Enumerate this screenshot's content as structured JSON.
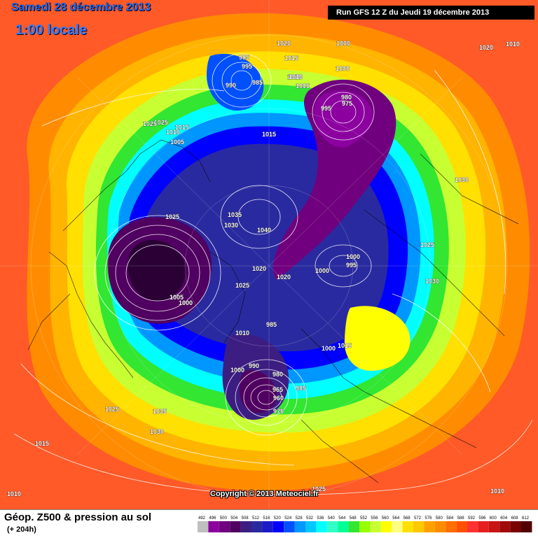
{
  "header": {
    "date_title": "Samedi 28 décembre 2013",
    "time_title": "1:00 locale",
    "run_info": "Run GFS 12 Z du Jeudi 19 décembre 2013"
  },
  "footer": {
    "title": "Géop. Z500 & pression au sol",
    "subtitle": "(+ 204h)",
    "copyright": "Copyright © 2013 Meteociel.fr"
  },
  "legend": {
    "values": [
      "492",
      "496",
      "500",
      "504",
      "508",
      "512",
      "516",
      "520",
      "524",
      "528",
      "532",
      "536",
      "540",
      "544",
      "548",
      "552",
      "556",
      "560",
      "564",
      "568",
      "572",
      "576",
      "580",
      "584",
      "588",
      "592",
      "596",
      "600",
      "604",
      "608",
      "612"
    ],
    "colors": [
      "#bfbfbf",
      "#8c00a0",
      "#70007d",
      "#500060",
      "#3c1e82",
      "#2a2aa0",
      "#1a1ac8",
      "#0000ff",
      "#0050ff",
      "#0096ff",
      "#00c8ff",
      "#00ffff",
      "#32ffc8",
      "#00ff96",
      "#32e632",
      "#96ff00",
      "#c8ff32",
      "#ffff00",
      "#ffff80",
      "#ffe000",
      "#ffc800",
      "#ffa000",
      "#ff8c00",
      "#ff6e00",
      "#ff5000",
      "#ff3232",
      "#e61e1e",
      "#c81414",
      "#a00a0a",
      "#780000",
      "#500000"
    ]
  },
  "pressure_labels": [
    {
      "text": "1025"
    },
    {
      "text": "1020"
    },
    {
      "text": "1000"
    },
    {
      "text": "1010"
    },
    {
      "text": "1000"
    },
    {
      "text": "995"
    },
    {
      "text": "990"
    },
    {
      "text": "985"
    },
    {
      "text": "985"
    },
    {
      "text": "1015"
    },
    {
      "text": "1010"
    },
    {
      "text": "1005"
    },
    {
      "text": "980"
    },
    {
      "text": "975"
    },
    {
      "text": "995"
    },
    {
      "text": "1025"
    },
    {
      "text": "1015"
    },
    {
      "text": "1010"
    },
    {
      "text": "1005"
    },
    {
      "text": "1015"
    },
    {
      "text": "1030"
    },
    {
      "text": "1025"
    },
    {
      "text": "1035"
    },
    {
      "text": "1030"
    },
    {
      "text": "1040"
    },
    {
      "text": "1025"
    },
    {
      "text": "1020"
    },
    {
      "text": "1020"
    },
    {
      "text": "1000"
    },
    {
      "text": "1000"
    },
    {
      "text": "995"
    },
    {
      "text": "1025"
    },
    {
      "text": "1005"
    },
    {
      "text": "1000"
    },
    {
      "text": "1030"
    },
    {
      "text": "1010"
    },
    {
      "text": "985"
    },
    {
      "text": "1000"
    },
    {
      "text": "1015"
    },
    {
      "text": "990"
    },
    {
      "text": "980"
    },
    {
      "text": "1000"
    },
    {
      "text": "965"
    },
    {
      "text": "960"
    },
    {
      "text": "985"
    },
    {
      "text": "975"
    },
    {
      "text": "1025"
    },
    {
      "text": "1035"
    },
    {
      "text": "1030"
    },
    {
      "text": "1015"
    },
    {
      "text": "1010"
    },
    {
      "text": "1020"
    },
    {
      "text": "1010"
    },
    {
      "text": "1010"
    },
    {
      "text": "1025"
    }
  ]
}
